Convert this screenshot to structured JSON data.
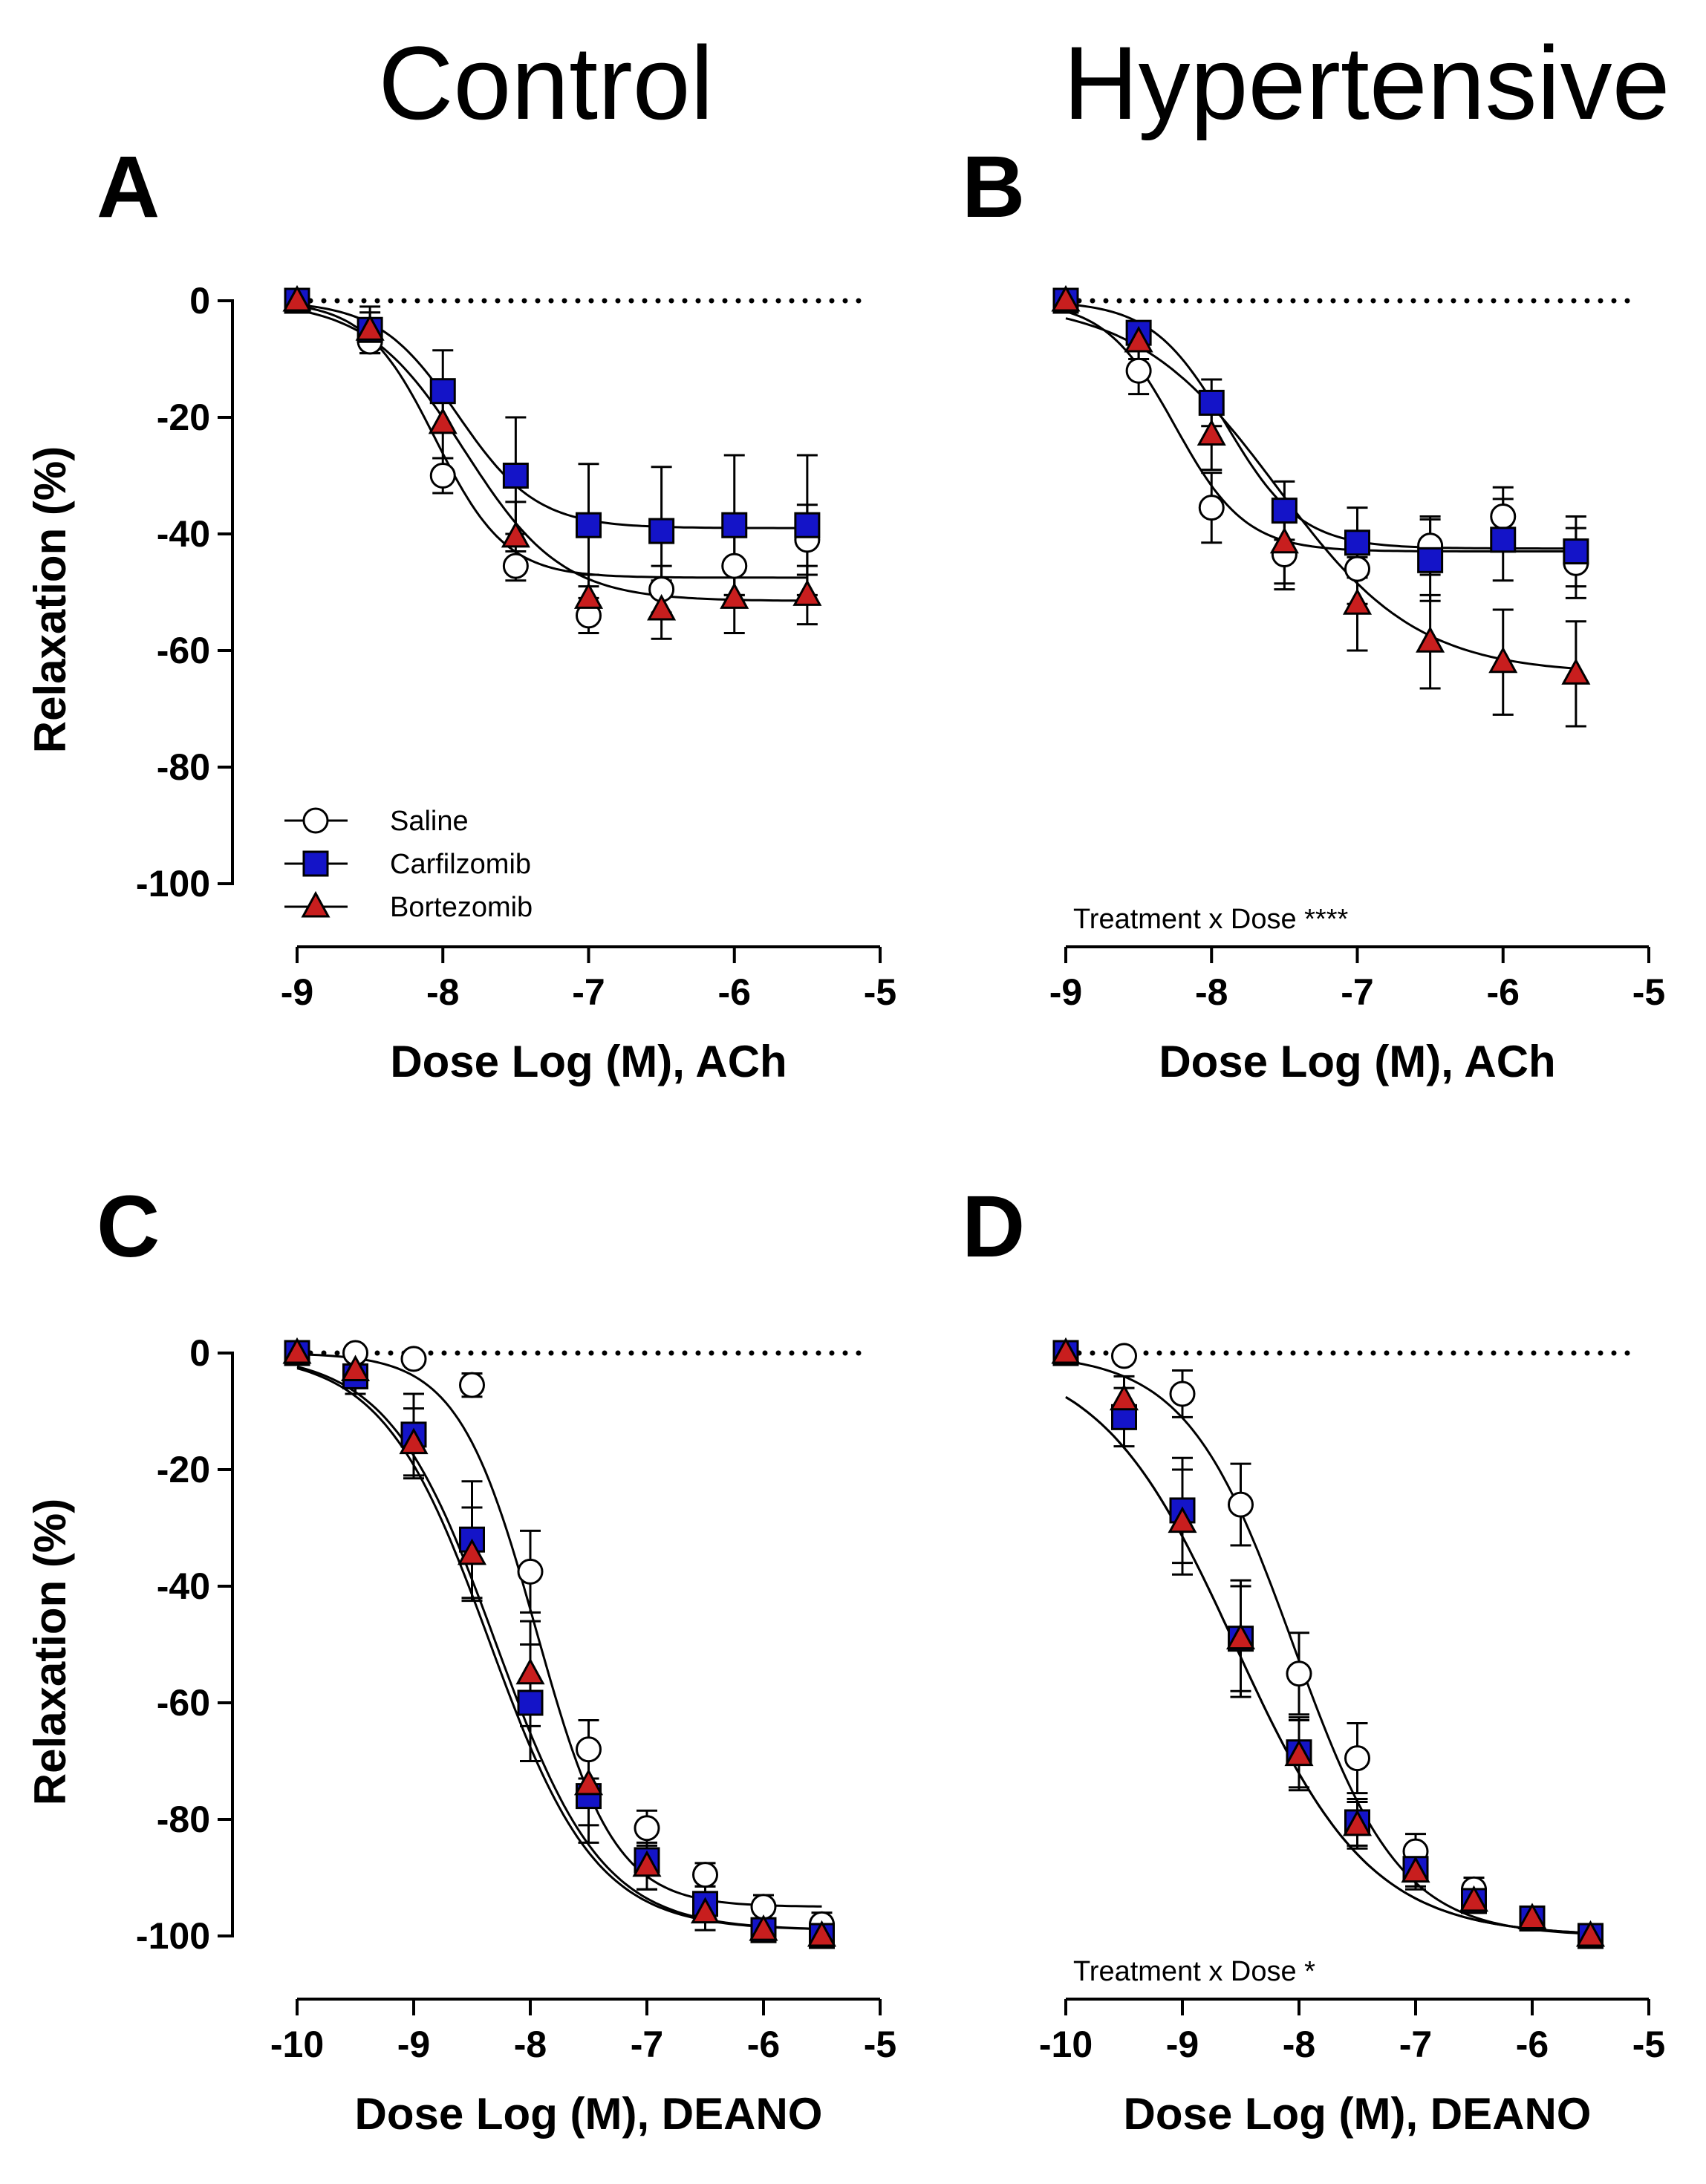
{
  "column_titles": [
    "Control",
    "Hypertensive"
  ],
  "colors": {
    "saline_fill": "#ffffff",
    "carfilzomib_fill": "#1414c8",
    "bortezomib_fill": "#c81e1e",
    "stroke": "#000000"
  },
  "chart_data": [
    {
      "panel": "A",
      "type": "line",
      "column": "Control",
      "xlabel": "Dose Log (M), ACh",
      "ylabel": "Relaxation (%)",
      "xlim": [
        -9,
        -5
      ],
      "ylim": [
        -100,
        0
      ],
      "xticks": [
        "-9",
        "-8",
        "-7",
        "-6",
        "-5"
      ],
      "yticks": [
        "0",
        "-20",
        "-40",
        "-60",
        "-80",
        "-100"
      ],
      "legend": [
        "Saline",
        "Carfilzomib",
        "Bortezomib"
      ],
      "annotation": "",
      "series": [
        {
          "name": "Saline",
          "marker": "circle",
          "x": [
            -9,
            -8.5,
            -8,
            -7.5,
            -7,
            -6.5,
            -6,
            -5.5
          ],
          "y": [
            0,
            -7,
            -30,
            -45.5,
            -54,
            -49.5,
            -45.5,
            -41
          ],
          "err": [
            1,
            2,
            3,
            2.5,
            3,
            4,
            5,
            6
          ],
          "fit": {
            "bottom": -47.5,
            "ec50": -8.05,
            "hill": 1.8
          }
        },
        {
          "name": "Carfilzomib",
          "marker": "square",
          "x": [
            -9,
            -8.5,
            -8,
            -7.5,
            -7,
            -6.5,
            -6,
            -5.5
          ],
          "y": [
            0,
            -5,
            -15.5,
            -30,
            -38.5,
            -39.5,
            -38.5,
            -38.5
          ],
          "err": [
            1,
            4,
            7,
            10,
            10.5,
            11,
            12,
            12
          ],
          "fit": {
            "bottom": -39,
            "ec50": -7.9,
            "hill": 1.6
          }
        },
        {
          "name": "Bortezomib",
          "marker": "triangle",
          "x": [
            -9,
            -8.5,
            -8,
            -7.5,
            -7,
            -6.5,
            -6,
            -5.5
          ],
          "y": [
            0,
            -5,
            -21,
            -40.5,
            -51,
            -53,
            -51,
            -50.5
          ],
          "err": [
            1,
            3,
            6,
            6,
            4,
            5,
            6,
            5
          ],
          "fit": {
            "bottom": -51.5,
            "ec50": -7.85,
            "hill": 1.3
          }
        }
      ]
    },
    {
      "panel": "B",
      "type": "line",
      "column": "Hypertensive",
      "xlabel": "Dose Log (M), ACh",
      "ylabel": "",
      "xlim": [
        -9,
        -5
      ],
      "ylim": [
        -100,
        0
      ],
      "xticks": [
        "-9",
        "-8",
        "-7",
        "-6",
        "-5"
      ],
      "yticks": [],
      "legend": [],
      "annotation": "Treatment x Dose ****",
      "series": [
        {
          "name": "Saline",
          "marker": "circle",
          "x": [
            -9,
            -8.5,
            -8,
            -7.5,
            -7,
            -6.5,
            -6,
            -5.5
          ],
          "y": [
            0,
            -12,
            -35.5,
            -43.5,
            -46,
            -42,
            -37,
            -45
          ],
          "err": [
            1,
            4,
            6,
            6,
            6,
            5,
            5,
            6
          ],
          "fit": {
            "bottom": -43,
            "ec50": -8.25,
            "hill": 1.8
          }
        },
        {
          "name": "Carfilzomib",
          "marker": "square",
          "x": [
            -9,
            -8.5,
            -8,
            -7.5,
            -7,
            -6.5,
            -6,
            -5.5
          ],
          "y": [
            0,
            -5.5,
            -17.5,
            -36,
            -41.5,
            -44.5,
            -41,
            -43
          ],
          "err": [
            1,
            2,
            4,
            5,
            6,
            7,
            7,
            6
          ],
          "fit": {
            "bottom": -42.5,
            "ec50": -7.9,
            "hill": 1.7
          }
        },
        {
          "name": "Bortezomib",
          "marker": "triangle",
          "x": [
            -9,
            -8.5,
            -8,
            -7.5,
            -7,
            -6.5,
            -6,
            -5.5
          ],
          "y": [
            0,
            -7,
            -23,
            -41.5,
            -52,
            -58.5,
            -62,
            -64
          ],
          "err": [
            1,
            3,
            6,
            7,
            8,
            8,
            9,
            9
          ],
          "fit": {
            "bottom": -64,
            "ec50": -7.55,
            "hill": 0.9
          }
        }
      ]
    },
    {
      "panel": "C",
      "type": "line",
      "column": "Control",
      "xlabel": "Dose Log (M), DEANO",
      "ylabel": "Relaxation (%)",
      "xlim": [
        -10,
        -5
      ],
      "ylim": [
        -100,
        0
      ],
      "xticks": [
        "-10",
        "-9",
        "-8",
        "-7",
        "-6",
        "-5"
      ],
      "yticks": [
        "0",
        "-20",
        "-40",
        "-60",
        "-80",
        "-100"
      ],
      "legend": [],
      "annotation": "",
      "series": [
        {
          "name": "Saline",
          "marker": "circle",
          "x": [
            -10,
            -9.5,
            -9,
            -8.5,
            -8,
            -7.5,
            -7,
            -6.5,
            -6,
            -5.5
          ],
          "y": [
            0,
            0,
            -1,
            -5.5,
            -37.5,
            -68,
            -81.5,
            -89.5,
            -95,
            -98
          ],
          "err": [
            1,
            1,
            1,
            2,
            7,
            5,
            3,
            2,
            2,
            2
          ],
          "fit": {
            "bottom": -95,
            "ec50": -7.95,
            "hill": 1.3
          }
        },
        {
          "name": "Carfilzomib",
          "marker": "square",
          "x": [
            -10,
            -9.5,
            -9,
            -8.5,
            -8,
            -7.5,
            -7,
            -6.5,
            -6,
            -5.5
          ],
          "y": [
            0,
            -4,
            -14,
            -32,
            -60,
            -76,
            -87,
            -94.5,
            -99,
            -100
          ],
          "err": [
            1,
            3,
            7,
            10,
            10,
            8,
            5,
            3,
            2,
            1
          ],
          "fit": {
            "bottom": -99,
            "ec50": -8.35,
            "hill": 0.95
          }
        },
        {
          "name": "Bortezomib",
          "marker": "triangle",
          "x": [
            -10,
            -9.5,
            -9,
            -8.5,
            -8,
            -7.5,
            -7,
            -6.5,
            -6,
            -5.5
          ],
          "y": [
            0,
            -3,
            -15.5,
            -34.5,
            -55,
            -74,
            -88,
            -96,
            -99,
            -100
          ],
          "err": [
            1,
            3,
            6,
            8,
            9,
            7,
            4,
            3,
            2,
            1
          ],
          "fit": {
            "bottom": -99,
            "ec50": -8.3,
            "hill": 0.95
          }
        }
      ]
    },
    {
      "panel": "D",
      "type": "line",
      "column": "Hypertensive",
      "xlabel": "Dose Log (M), DEANO",
      "ylabel": "",
      "xlim": [
        -10,
        -5
      ],
      "ylim": [
        -100,
        0
      ],
      "xticks": [
        "-10",
        "-9",
        "-8",
        "-7",
        "-6",
        "-5"
      ],
      "yticks": [],
      "legend": [],
      "annotation": "Treatment x Dose *",
      "series": [
        {
          "name": "Saline",
          "marker": "circle",
          "x": [
            -10,
            -9.5,
            -9,
            -8.5,
            -8,
            -7.5,
            -7,
            -6.5,
            -6,
            -5.5
          ],
          "y": [
            0,
            -0.5,
            -7,
            -26,
            -55,
            -69.5,
            -85.5,
            -92,
            -97,
            -100
          ],
          "err": [
            1,
            1,
            4,
            7,
            7,
            6,
            3,
            2,
            2,
            1
          ],
          "fit": {
            "bottom": -100,
            "ec50": -8.05,
            "hill": 0.95
          }
        },
        {
          "name": "Carfilzomib",
          "marker": "square",
          "x": [
            -10,
            -9.5,
            -9,
            -8.5,
            -8,
            -7.5,
            -7,
            -6.5,
            -6,
            -5.5
          ],
          "y": [
            0,
            -11,
            -27,
            -49,
            -68.5,
            -80.5,
            -88.5,
            -94,
            -97,
            -100
          ],
          "err": [
            1,
            5,
            9,
            9,
            6,
            4,
            3,
            2,
            2,
            1
          ],
          "fit": {
            "bottom": -100,
            "ec50": -8.55,
            "hill": 0.75
          }
        },
        {
          "name": "Bortezomib",
          "marker": "triangle",
          "x": [
            -10,
            -9.5,
            -9,
            -8.5,
            -8,
            -7.5,
            -7,
            -6.5,
            -6,
            -5.5
          ],
          "y": [
            0,
            -8,
            -29,
            -49,
            -69,
            -81,
            -89,
            -94,
            -97,
            -100
          ],
          "err": [
            1,
            4,
            9,
            10,
            6,
            4,
            3,
            2,
            2,
            1
          ],
          "fit": {
            "bottom": -100,
            "ec50": -8.55,
            "hill": 0.75
          }
        }
      ]
    }
  ]
}
